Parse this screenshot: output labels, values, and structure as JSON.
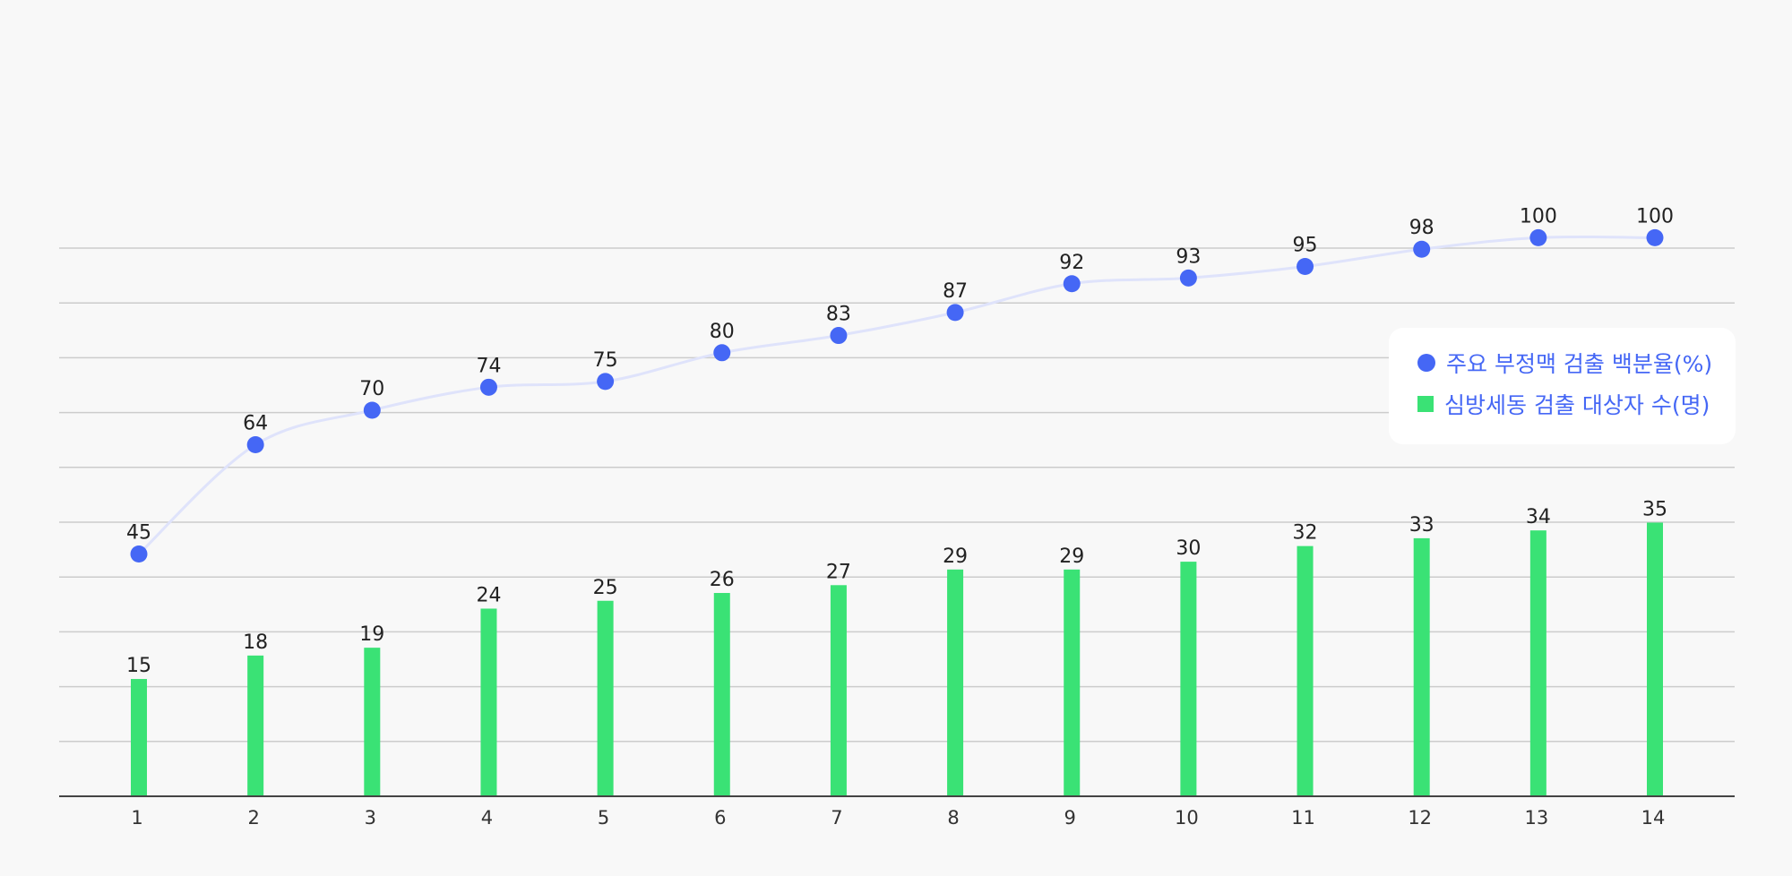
{
  "chart_data": {
    "type": "bar",
    "categories": [
      "1",
      "2",
      "3",
      "4",
      "5",
      "6",
      "7",
      "8",
      "9",
      "10",
      "11",
      "12",
      "13",
      "14"
    ],
    "series": [
      {
        "name": "주요 부정맥 검출 백분율(%)",
        "type": "line",
        "color": "#4567f5",
        "line_color": "#dfe3fb",
        "values": [
          45,
          64,
          70,
          74,
          75,
          80,
          83,
          87,
          92,
          93,
          95,
          98,
          100,
          100
        ]
      },
      {
        "name": "심방세동 검출 대상자 수(명)",
        "type": "bar",
        "color": "#3ae275",
        "values": [
          15,
          18,
          19,
          24,
          25,
          26,
          27,
          29,
          29,
          30,
          32,
          33,
          34,
          35
        ]
      }
    ],
    "title": "",
    "xlabel": "",
    "ylabel": "",
    "grid": true,
    "legend_position": "right",
    "axis_color": "#444444",
    "grid_color": "#cccccc"
  }
}
